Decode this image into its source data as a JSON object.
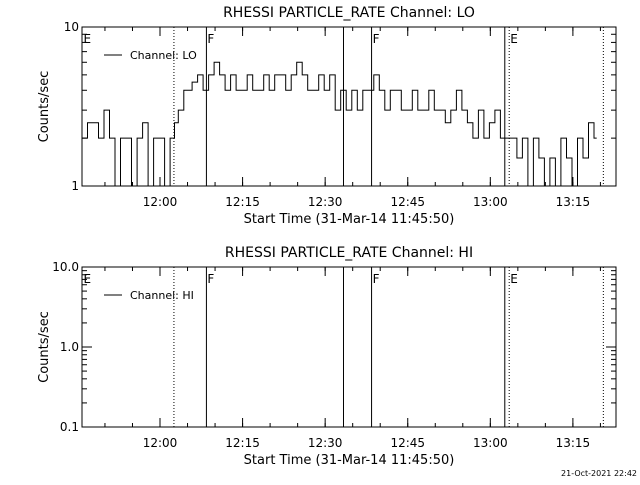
{
  "timestamp": "21-Oct-2021 22:42",
  "chart_data": [
    {
      "type": "line",
      "title": "RHESSI PARTICLE_RATE Channel: LO",
      "xlabel": "Start Time (31-Mar-14 11:45:50)",
      "ylabel": "Counts/sec",
      "yscale": "log",
      "xlim_min": [
        0,
        97
      ],
      "ylim": [
        1,
        10
      ],
      "x_ticks": [
        {
          "min": 14.17,
          "label": "12:00"
        },
        {
          "min": 29.17,
          "label": "12:15"
        },
        {
          "min": 44.17,
          "label": "12:30"
        },
        {
          "min": 59.17,
          "label": "12:45"
        },
        {
          "min": 74.17,
          "label": "13:00"
        },
        {
          "min": 89.17,
          "label": "13:15"
        }
      ],
      "y_ticks": [
        {
          "value": 1,
          "label": "1"
        },
        {
          "value": 10,
          "label": "10"
        }
      ],
      "legend": {
        "position": "top-left",
        "entries": [
          "Channel: LO"
        ]
      },
      "markers": [
        {
          "label": "E",
          "min": 0,
          "style": "dotted"
        },
        {
          "label": "",
          "min": 16.7,
          "style": "dotted"
        },
        {
          "label": "F",
          "min": 22.6,
          "style": "solid"
        },
        {
          "label": "",
          "min": 47.5,
          "style": "solid"
        },
        {
          "label": "F",
          "min": 52.6,
          "style": "solid"
        },
        {
          "label": "",
          "min": 76.8,
          "style": "solid"
        },
        {
          "label": "E",
          "min": 77.6,
          "style": "dotted"
        },
        {
          "label": "",
          "min": 94.7,
          "style": "dotted"
        }
      ],
      "series": [
        {
          "name": "Channel: LO",
          "segments": [
            [
              [
                0,
                2
              ],
              [
                1,
                2
              ],
              [
                1,
                2.5
              ],
              [
                3,
                2.5
              ],
              [
                3,
                2
              ],
              [
                4,
                2
              ],
              [
                4,
                3
              ],
              [
                5,
                3
              ],
              [
                5,
                2
              ],
              [
                6,
                2
              ],
              [
                6,
                1
              ],
              [
                7,
                1
              ],
              [
                7,
                2
              ],
              [
                9,
                2
              ],
              [
                9,
                1
              ],
              [
                10,
                1
              ],
              [
                10,
                2
              ],
              [
                11,
                2
              ],
              [
                11,
                2.5
              ],
              [
                12,
                2.5
              ],
              [
                12,
                1
              ],
              [
                13,
                1
              ],
              [
                13,
                2
              ],
              [
                15,
                2
              ],
              [
                15,
                1
              ],
              [
                16,
                1
              ],
              [
                16,
                2
              ],
              [
                16.8,
                2
              ],
              [
                16.8,
                2.5
              ],
              [
                17.5,
                2.5
              ],
              [
                17.5,
                3
              ],
              [
                18.5,
                3
              ],
              [
                18.5,
                4
              ],
              [
                20,
                4
              ],
              [
                20,
                4.5
              ],
              [
                21,
                4.5
              ],
              [
                21,
                5
              ],
              [
                22,
                5
              ],
              [
                22,
                4
              ],
              [
                23,
                4
              ],
              [
                23,
                5
              ],
              [
                24,
                5
              ],
              [
                24,
                6
              ],
              [
                25,
                6
              ],
              [
                25,
                5
              ],
              [
                26,
                5
              ],
              [
                26,
                4
              ],
              [
                27,
                4
              ],
              [
                27,
                5
              ],
              [
                28,
                5
              ],
              [
                28,
                4
              ],
              [
                30,
                4
              ],
              [
                30,
                5
              ],
              [
                31,
                5
              ],
              [
                31,
                4
              ],
              [
                33,
                4
              ],
              [
                33,
                5
              ],
              [
                34,
                5
              ],
              [
                34,
                4
              ],
              [
                35,
                4
              ],
              [
                35,
                5
              ],
              [
                37,
                5
              ],
              [
                37,
                4
              ],
              [
                38,
                4
              ],
              [
                38,
                5
              ],
              [
                39,
                5
              ],
              [
                39,
                6
              ],
              [
                40,
                6
              ],
              [
                40,
                5
              ],
              [
                41,
                5
              ],
              [
                41,
                4
              ],
              [
                43,
                4
              ],
              [
                43,
                5
              ],
              [
                44,
                5
              ],
              [
                44,
                4
              ],
              [
                45,
                4
              ],
              [
                45,
                5
              ],
              [
                46,
                5
              ],
              [
                46,
                3
              ],
              [
                47,
                3
              ],
              [
                47,
                4
              ],
              [
                48,
                4
              ],
              [
                48,
                3
              ],
              [
                49,
                3
              ],
              [
                49,
                4
              ],
              [
                50,
                4
              ],
              [
                50,
                3
              ],
              [
                51,
                3
              ],
              [
                51,
                4
              ],
              [
                53,
                4
              ],
              [
                53,
                5
              ],
              [
                54,
                5
              ],
              [
                54,
                4
              ],
              [
                55,
                4
              ],
              [
                55,
                3
              ],
              [
                56,
                3
              ],
              [
                56,
                4
              ],
              [
                58,
                4
              ],
              [
                58,
                3
              ],
              [
                60,
                3
              ],
              [
                60,
                4
              ],
              [
                61,
                4
              ],
              [
                61,
                3
              ],
              [
                63,
                3
              ],
              [
                63,
                4
              ],
              [
                64,
                4
              ],
              [
                64,
                3
              ],
              [
                66,
                3
              ],
              [
                66,
                2.5
              ],
              [
                67,
                2.5
              ],
              [
                67,
                3
              ],
              [
                68,
                3
              ],
              [
                68,
                4
              ],
              [
                69,
                4
              ],
              [
                69,
                3
              ],
              [
                70,
                3
              ],
              [
                70,
                2.5
              ],
              [
                71,
                2.5
              ],
              [
                71,
                2
              ],
              [
                72,
                2
              ],
              [
                72,
                3
              ],
              [
                73,
                3
              ],
              [
                73,
                2
              ],
              [
                74,
                2
              ],
              [
                74,
                2.5
              ],
              [
                75,
                2.5
              ],
              [
                75,
                3
              ],
              [
                76,
                3
              ],
              [
                76,
                2
              ],
              [
                79,
                2
              ],
              [
                79,
                1.5
              ],
              [
                80,
                1.5
              ],
              [
                80,
                2
              ],
              [
                81,
                2
              ],
              [
                81,
                1
              ],
              [
                82,
                1
              ],
              [
                82,
                2
              ],
              [
                83,
                2
              ],
              [
                83,
                1.5
              ],
              [
                84,
                1.5
              ],
              [
                84,
                1
              ],
              [
                85,
                1
              ],
              [
                85,
                1.5
              ],
              [
                86,
                1.5
              ],
              [
                86,
                1
              ],
              [
                87,
                1
              ],
              [
                87,
                2
              ],
              [
                88,
                2
              ],
              [
                88,
                1.5
              ],
              [
                89,
                1.5
              ],
              [
                89,
                1
              ],
              [
                90,
                1
              ],
              [
                90,
                2
              ],
              [
                91,
                2
              ],
              [
                91,
                1.5
              ],
              [
                92,
                1.5
              ],
              [
                92,
                2.5
              ],
              [
                93,
                2.5
              ],
              [
                93,
                2
              ],
              [
                93.5,
                2
              ]
            ]
          ]
        }
      ]
    },
    {
      "type": "line",
      "title": "RHESSI PARTICLE_RATE Channel: HI",
      "xlabel": "Start Time (31-Mar-14 11:45:50)",
      "ylabel": "Counts/sec",
      "yscale": "log",
      "xlim_min": [
        0,
        97
      ],
      "ylim": [
        0.1,
        10
      ],
      "x_ticks": [
        {
          "min": 14.17,
          "label": "12:00"
        },
        {
          "min": 29.17,
          "label": "12:15"
        },
        {
          "min": 44.17,
          "label": "12:30"
        },
        {
          "min": 59.17,
          "label": "12:45"
        },
        {
          "min": 74.17,
          "label": "13:00"
        },
        {
          "min": 89.17,
          "label": "13:15"
        }
      ],
      "y_ticks": [
        {
          "value": 0.1,
          "label": "0.1"
        },
        {
          "value": 1,
          "label": "1.0"
        },
        {
          "value": 10,
          "label": "10.0"
        }
      ],
      "legend": {
        "position": "top-left",
        "entries": [
          "Channel: HI"
        ]
      },
      "markers": [
        {
          "label": "E",
          "min": 0,
          "style": "dotted"
        },
        {
          "label": "",
          "min": 16.7,
          "style": "dotted"
        },
        {
          "label": "F",
          "min": 22.6,
          "style": "solid"
        },
        {
          "label": "",
          "min": 47.5,
          "style": "solid"
        },
        {
          "label": "F",
          "min": 52.6,
          "style": "solid"
        },
        {
          "label": "",
          "min": 76.8,
          "style": "solid"
        },
        {
          "label": "E",
          "min": 77.6,
          "style": "dotted"
        },
        {
          "label": "",
          "min": 94.7,
          "style": "dotted"
        }
      ],
      "series": [
        {
          "name": "Channel: HI",
          "segments": []
        }
      ]
    }
  ]
}
